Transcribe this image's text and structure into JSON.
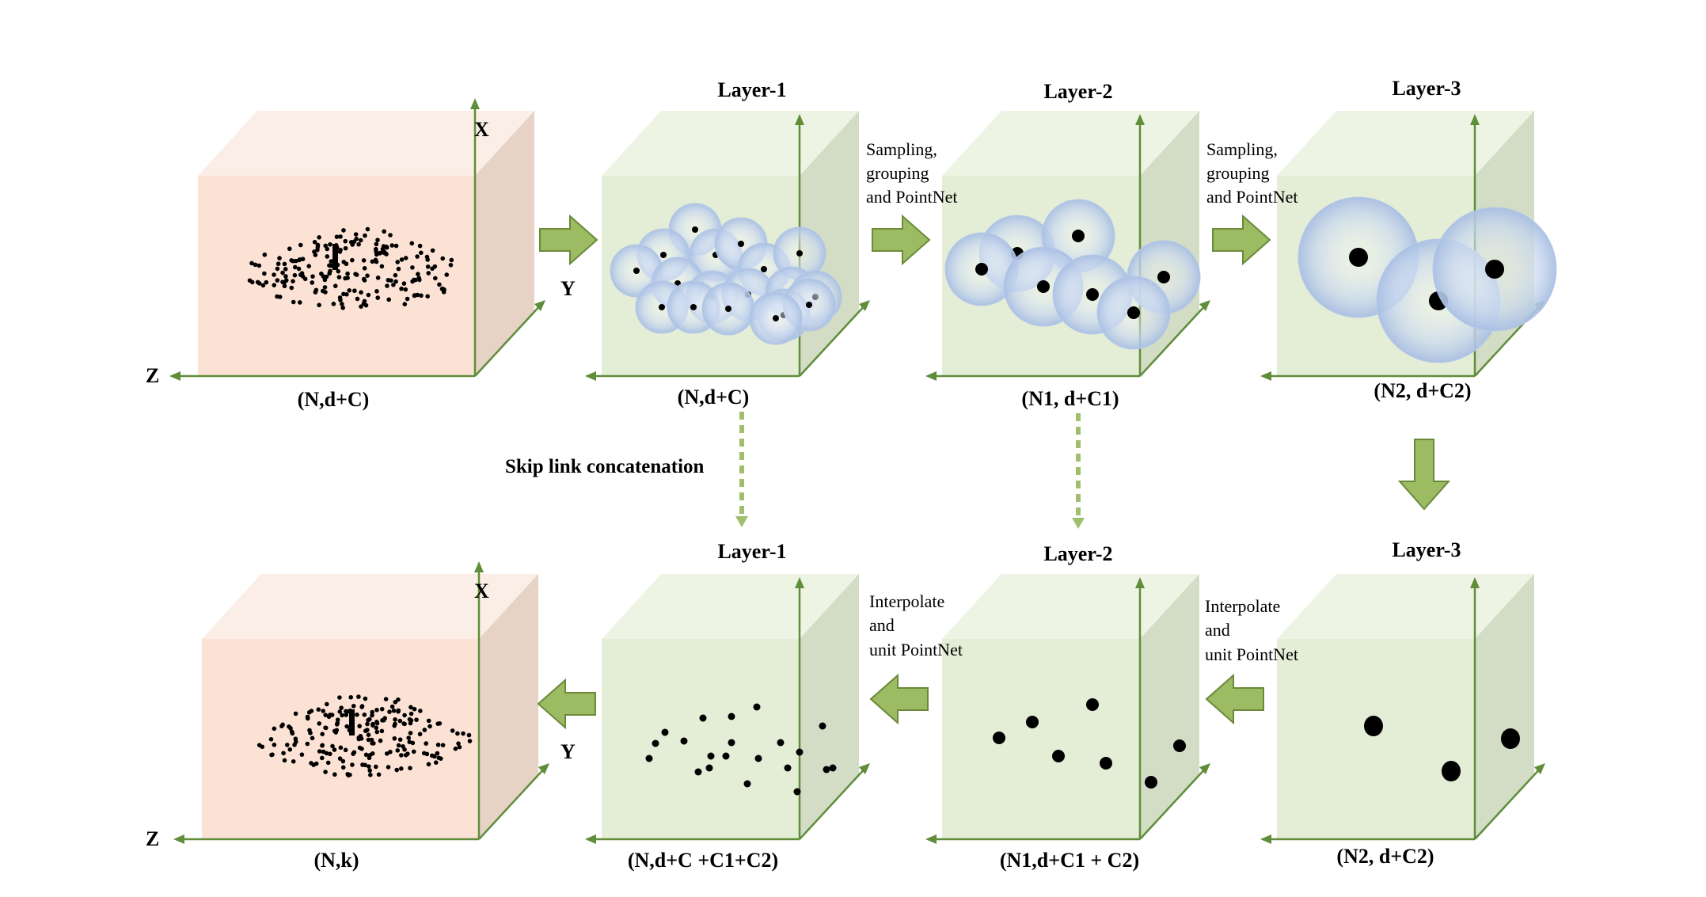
{
  "colors": {
    "peach_front": "#fbe2d4",
    "peach_top": "#fbeee6",
    "peach_side": "#e6d3c6",
    "green_front": "#e4edd5",
    "green_top": "#eef4e4",
    "green_side": "#d3dcc4",
    "axis": "#5f8d3a",
    "arrow_fill": "#9cbb62",
    "arrow_stroke": "#6a8a3a",
    "skip_dash": "#a0bf6e",
    "ball": "#b8cbe8",
    "dot": "#000000"
  },
  "top_row": [
    {
      "kind": "input",
      "title": "",
      "caption": "(N,d+C)",
      "axis_x": "X",
      "axis_y": "Y",
      "axis_z": "Z"
    },
    {
      "kind": "layer",
      "title": "Layer-1",
      "caption": "(N,d+C)"
    },
    {
      "kind": "layer",
      "title": "Layer-2",
      "caption": "(N1, d+C1)"
    },
    {
      "kind": "layer",
      "title": "Layer-3",
      "caption": "(N2, d+C2)"
    }
  ],
  "bottom_row": [
    {
      "kind": "output",
      "title": "",
      "caption": "(N,k)",
      "axis_x": "X",
      "axis_y": "Y",
      "axis_z": "Z"
    },
    {
      "kind": "layer",
      "title": "Layer-1",
      "caption": "(N,d+C +C1+C2)"
    },
    {
      "kind": "layer",
      "title": "Layer-2",
      "caption": "(N1,d+C1 + C2)"
    },
    {
      "kind": "layer",
      "title": "Layer-3",
      "caption": "(N2, d+C2)"
    }
  ],
  "sa_label_lines": [
    "Sampling,",
    "grouping",
    "and PointNet"
  ],
  "fp_label_lines": [
    "Interpolate",
    "and",
    "unit PointNet"
  ],
  "skip_label": "Skip link concatenation"
}
